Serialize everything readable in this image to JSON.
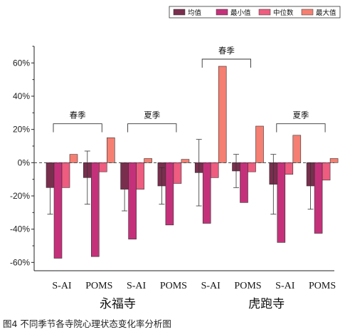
{
  "caption": "图4 不同季节各寺院心理状态变化率分析图",
  "chart_data": {
    "type": "bar",
    "title": "",
    "xlabel": "",
    "ylabel": "",
    "ylim": [
      -65,
      70
    ],
    "yticks": [
      -60,
      -40,
      -20,
      0,
      20,
      40,
      60
    ],
    "ytick_labels": [
      "-60%",
      "-40%",
      "-20%",
      "0%",
      "20%",
      "40%",
      "60%"
    ],
    "categories": [
      "S-AI",
      "POMS",
      "S-AI",
      "POMS",
      "S-AI",
      "POMS",
      "S-AI",
      "POMS"
    ],
    "groups": [
      {
        "label": "永福寺",
        "categories": [
          0,
          1,
          2,
          3
        ]
      },
      {
        "label": "虎跑寺",
        "categories": [
          4,
          5,
          6,
          7
        ]
      }
    ],
    "season_brackets": [
      {
        "label": "春季",
        "categories": [
          0,
          1
        ]
      },
      {
        "label": "夏季",
        "categories": [
          2,
          3
        ]
      },
      {
        "label": "春季",
        "categories": [
          4,
          5
        ]
      },
      {
        "label": "夏季",
        "categories": [
          6,
          7
        ]
      }
    ],
    "series": [
      {
        "name": "均值",
        "color": "#7a2e4e",
        "values": [
          -15,
          -9,
          -16,
          -14,
          -6,
          -5,
          -13,
          -14
        ],
        "error_high": [
          -31,
          7,
          -29,
          -25,
          14,
          5,
          5,
          0
        ],
        "error_low": [
          null,
          -25,
          null,
          -3,
          -26,
          -15,
          -31,
          -28
        ]
      },
      {
        "name": "最小值",
        "color": "#c4317a",
        "values": [
          -57.5,
          -56.5,
          -46,
          -37.5,
          -36.5,
          -24,
          -48,
          -42.5
        ]
      },
      {
        "name": "中位数",
        "color": "#ee5c80",
        "values": [
          -15,
          -5.5,
          -16,
          -12.5,
          -9,
          -5.5,
          -7,
          -10.5
        ]
      },
      {
        "name": "最大值",
        "color": "#f47f72",
        "values": [
          5,
          15,
          2.5,
          2,
          58,
          22,
          16.5,
          2.5
        ]
      }
    ],
    "legend": "top-right",
    "grid": false
  }
}
